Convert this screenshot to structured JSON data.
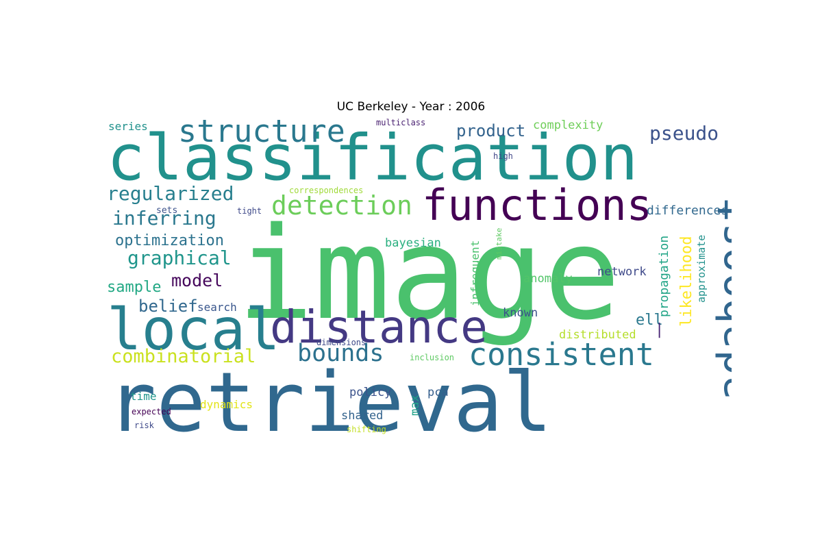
{
  "title": "UC Berkeley - Year : 2006",
  "words": [
    {
      "text": "image",
      "color": "#4ac16d"
    },
    {
      "text": "retrieval",
      "color": "#30688e"
    },
    {
      "text": "classification",
      "color": "#21918c"
    },
    {
      "text": "local",
      "color": "#277f8e"
    },
    {
      "text": "distance",
      "color": "#443983"
    },
    {
      "text": "functions",
      "color": "#440154"
    },
    {
      "text": "structure",
      "color": "#2a788e"
    },
    {
      "text": "adaboost",
      "color": "#31668e"
    },
    {
      "text": "consistent",
      "color": "#2a788e"
    },
    {
      "text": "detection",
      "color": "#6ccd5a"
    },
    {
      "text": "bounds",
      "color": "#2c718e"
    },
    {
      "text": "regularized",
      "color": "#277f8e"
    },
    {
      "text": "combinatorial",
      "color": "#cae11f"
    },
    {
      "text": "inferring",
      "color": "#2a788e"
    },
    {
      "text": "graphical",
      "color": "#1f958b"
    },
    {
      "text": "optimization",
      "color": "#2c728e"
    },
    {
      "text": "pseudo",
      "color": "#3b528b"
    },
    {
      "text": "product",
      "color": "#33638d"
    },
    {
      "text": "model",
      "color": "#46085c"
    },
    {
      "text": "sample",
      "color": "#22a884"
    },
    {
      "text": "belief",
      "color": "#31688e"
    },
    {
      "text": "likelihood",
      "color": "#fde725"
    },
    {
      "text": "propagation",
      "color": "#20a486"
    },
    {
      "text": "ell",
      "color": "#2a788e"
    },
    {
      "text": "|",
      "color": "#482475"
    },
    {
      "text": "differences",
      "color": "#31688e"
    },
    {
      "text": "complexity",
      "color": "#6ece58"
    },
    {
      "text": "approximate",
      "color": "#21918c"
    },
    {
      "text": "series",
      "color": "#21918c"
    },
    {
      "text": "bayesian",
      "color": "#29af7f"
    },
    {
      "text": "anomaly",
      "color": "#52c569"
    },
    {
      "text": "network",
      "color": "#3e4989"
    },
    {
      "text": "known",
      "color": "#3b528b"
    },
    {
      "text": "distributed",
      "color": "#b5de2b"
    },
    {
      "text": "infrequent",
      "color": "#4ac16d"
    },
    {
      "text": "policy",
      "color": "#3b528b"
    },
    {
      "text": "max",
      "color": "#1fa188"
    },
    {
      "text": "pca",
      "color": "#355f8d"
    },
    {
      "text": "shared",
      "color": "#33638d"
    },
    {
      "text": "time",
      "color": "#1f958b"
    },
    {
      "text": "dynamics",
      "color": "#e2e418"
    },
    {
      "text": "search",
      "color": "#39568c"
    },
    {
      "text": "sets",
      "color": "#3b528b"
    },
    {
      "text": "tight",
      "color": "#3e4989"
    },
    {
      "text": "correspondences",
      "color": "#a0da39"
    },
    {
      "text": "multiclass",
      "color": "#481f70"
    },
    {
      "text": "high",
      "color": "#404688"
    },
    {
      "text": "mistake",
      "color": "#5ec962"
    },
    {
      "text": "dimensions",
      "color": "#3e4989"
    },
    {
      "text": "inclusion",
      "color": "#5ec962"
    },
    {
      "text": "expected",
      "color": "#440154"
    },
    {
      "text": "risk",
      "color": "#3e4989"
    },
    {
      "text": "shifting",
      "color": "#c2df23"
    }
  ]
}
